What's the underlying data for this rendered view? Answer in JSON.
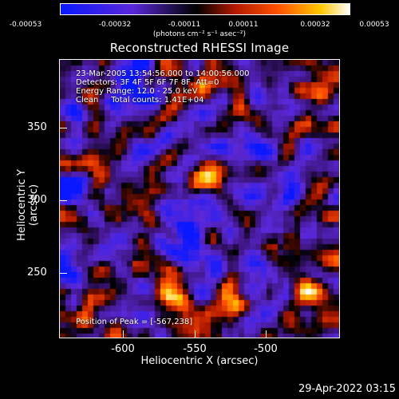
{
  "colorbar": {
    "ticks": [
      "-0.00053",
      "-0.00032",
      "-0.00011",
      "0.00011",
      "0.00032",
      "0.00053"
    ],
    "units": "(photons cm⁻² s⁻¹ asec⁻²)"
  },
  "title": "Reconstructed RHESSI Image",
  "info": {
    "line1": "23-Mar-2005 13:54:56.000 to 14:00:56.000",
    "line2": "Detectors: 3F 4F 5F 6F 7F 8F, Att=0",
    "line3": "Energy Range: 12.0 - 25.0 keV",
    "line4": "Clean     Total counts: 1.41E+04",
    "peak": "Position of Peak = [-567,238]"
  },
  "axes": {
    "xlabel": "Heliocentric X (arcsec)",
    "ylabel": "Heliocentric Y (arcsec)",
    "xticks": [
      "-600",
      "-550",
      "-500"
    ],
    "yticks": [
      "350",
      "300",
      "250"
    ]
  },
  "footer": {
    "timestamp": "29-Apr-2022 03:15"
  },
  "chart_data": {
    "type": "heatmap",
    "title": "Reconstructed RHESSI Image",
    "xlabel": "Heliocentric X (arcsec)",
    "ylabel": "Heliocentric Y (arcsec)",
    "xlim": [
      -645,
      -545
    ],
    "ylim": [
      203,
      403
    ],
    "colorscale_range": [
      -0.00053,
      0.00053
    ],
    "peak_position": [
      -567,
      238
    ],
    "colormap": [
      "#0000ff",
      "#4b1fb0",
      "#000000",
      "#a01000",
      "#ff4800",
      "#ffb000",
      "#ffffff"
    ]
  }
}
